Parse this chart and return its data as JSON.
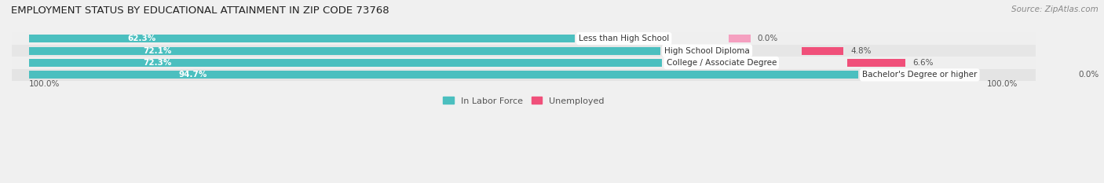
{
  "title": "EMPLOYMENT STATUS BY EDUCATIONAL ATTAINMENT IN ZIP CODE 73768",
  "source": "Source: ZipAtlas.com",
  "categories": [
    "Less than High School",
    "High School Diploma",
    "College / Associate Degree",
    "Bachelor's Degree or higher"
  ],
  "in_labor_force": [
    62.3,
    72.1,
    72.3,
    94.7
  ],
  "unemployed": [
    0.0,
    4.8,
    6.6,
    0.0
  ],
  "labor_color": "#4BBFBF",
  "unemployed_color_high": "#F0507A",
  "unemployed_color_low": "#F5A0C0",
  "bar_bg_color_odd": "#EBEBEB",
  "bar_bg_color_even": "#E0E0E0",
  "label_text_color": "#333333",
  "value_text_color": "#555555",
  "x_left_label": "100.0%",
  "x_right_label": "100.0%",
  "legend_labor": "In Labor Force",
  "legend_unemployed": "Unemployed",
  "title_fontsize": 9.5,
  "source_fontsize": 7.5,
  "bar_label_fontsize": 7.5,
  "cat_label_fontsize": 7.5,
  "pct_label_fontsize": 7.5,
  "axis_label_fontsize": 7.5,
  "legend_fontsize": 8.0
}
